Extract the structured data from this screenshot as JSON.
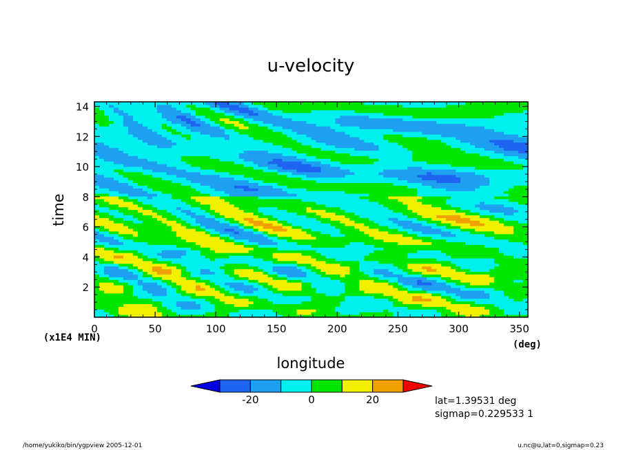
{
  "chart_data": {
    "type": "heatmap",
    "title": "u-velocity",
    "xlabel": "longitude",
    "ylabel": "time",
    "x_unit": "(deg)",
    "y_unit": "(x1E4 MIN)",
    "xlim": [
      0,
      357
    ],
    "ylim": [
      0,
      14.3
    ],
    "x_ticks": [
      0,
      50,
      100,
      150,
      200,
      250,
      300,
      350
    ],
    "x_tick_labels": [
      "0",
      "50",
      "100",
      "150",
      "200",
      "250",
      "300",
      "350"
    ],
    "y_ticks": [
      2,
      4,
      6,
      8,
      10,
      12,
      14
    ],
    "y_tick_labels": [
      "2",
      "4",
      "6",
      "8",
      "10",
      "12",
      "14"
    ],
    "colorbar": {
      "bounds": [
        -30,
        -20,
        -10,
        0,
        10,
        20,
        30
      ],
      "tick_values": [
        -20,
        0,
        20
      ],
      "tick_labels": [
        "-20",
        "0",
        "20"
      ],
      "colors": [
        "#0000e0",
        "#1e64f0",
        "#1ea0f0",
        "#00f0f0",
        "#00e600",
        "#f0f000",
        "#f0a000",
        "#f00000"
      ]
    },
    "regimes": [
      {
        "t_range": [
          0,
          4.5
        ],
        "dominant": "green/cyan banded"
      },
      {
        "t_range": [
          4.5,
          8
        ],
        "dominant": "cyan/green with yellow patches"
      },
      {
        "t_range": [
          8,
          14.3
        ],
        "dominant": "cyan with blue and green streaks"
      }
    ]
  },
  "annotations": {
    "lat": "lat=1.39531 deg",
    "sigmap": "sigmap=0.229533 1"
  },
  "footer": {
    "left": "/home/yukiko/bin/ygpview  2005-12-01",
    "right": "u.nc@u,lat=0,sigmap=0.23"
  }
}
